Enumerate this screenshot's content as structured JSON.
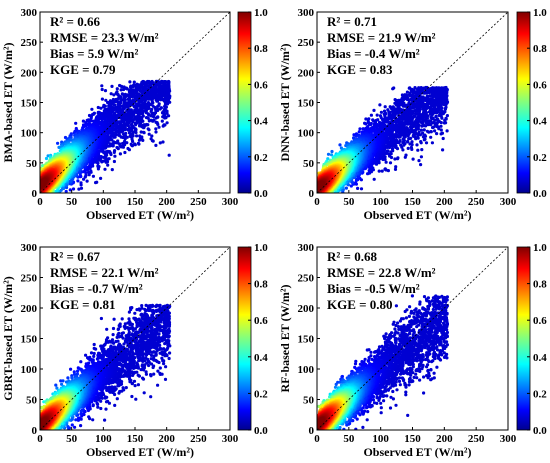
{
  "chart_data": [
    {
      "type": "scatter",
      "variant": "density-scatter",
      "xlabel": "Observed ET (W/m²)",
      "ylabel": "BMA-based ET (W/m²)",
      "xlim": [
        0,
        300
      ],
      "ylim": [
        0,
        300
      ],
      "x_ticks": [
        "0",
        "50",
        "100",
        "150",
        "200",
        "250",
        "300"
      ],
      "y_ticks": [
        "0",
        "50",
        "100",
        "150",
        "200",
        "250",
        "300"
      ],
      "reference_line": "1:1",
      "stats": {
        "r2": "R² = 0.66",
        "rmse": "RMSE = 23.3 W/m²",
        "bias": "Bias = 5.9 W/m²",
        "kge": "KGE = 0.79"
      },
      "colorbar": {
        "ticks": [
          "0.0",
          "0.2",
          "0.4",
          "0.6",
          "0.8",
          "1.0"
        ],
        "range": [
          0,
          1
        ],
        "colormap": "jet"
      },
      "cloud": {
        "x_max": 205,
        "slope": 0.88,
        "intercept": 12,
        "spread": 22,
        "y_cap": 185
      }
    },
    {
      "type": "scatter",
      "variant": "density-scatter",
      "xlabel": "Observed ET (W/m²)",
      "ylabel": "DNN-based ET (W/m²)",
      "xlim": [
        0,
        300
      ],
      "ylim": [
        0,
        300
      ],
      "x_ticks": [
        "0",
        "50",
        "100",
        "150",
        "200",
        "250",
        "300"
      ],
      "y_ticks": [
        "0",
        "50",
        "100",
        "150",
        "200",
        "250",
        "300"
      ],
      "reference_line": "1:1",
      "stats": {
        "r2": "R² = 0.71",
        "rmse": "RMSE =  21.9 W/m²",
        "bias": "Bias = -0.4 W/m²",
        "kge": "KGE = 0.83"
      },
      "colorbar": {
        "ticks": [
          "0.0",
          "0.2",
          "0.4",
          "0.6",
          "0.8",
          "1.0"
        ],
        "range": [
          0,
          1
        ],
        "colormap": "jet"
      },
      "cloud": {
        "x_max": 205,
        "slope": 0.82,
        "intercept": 8,
        "spread": 20,
        "y_cap": 175
      }
    },
    {
      "type": "scatter",
      "variant": "density-scatter",
      "xlabel": "Observed ET (W/m²)",
      "ylabel": "GBRT-based ET (W/m²)",
      "xlim": [
        0,
        300
      ],
      "ylim": [
        0,
        300
      ],
      "x_ticks": [
        "0",
        "50",
        "100",
        "150",
        "200",
        "250",
        "300"
      ],
      "y_ticks": [
        "0",
        "50",
        "100",
        "150",
        "200",
        "250",
        "300"
      ],
      "reference_line": "1:1",
      "stats": {
        "r2": "R² = 0.67",
        "rmse": "RMSE = 22.1 W/m²",
        "bias": "Bias = -0.7 W/m²",
        "kge": "KGE = 0.81"
      },
      "colorbar": {
        "ticks": [
          "0.0",
          "0.2",
          "0.4",
          "0.6",
          "0.8",
          "1.0"
        ],
        "range": [
          0,
          1
        ],
        "colormap": "jet"
      },
      "cloud": {
        "x_max": 205,
        "slope": 0.85,
        "intercept": 8,
        "spread": 21,
        "y_cap": 205
      }
    },
    {
      "type": "scatter",
      "variant": "density-scatter",
      "xlabel": "Observed ET (W/m²)",
      "ylabel": "RF-based ET (W/m²)",
      "xlim": [
        0,
        300
      ],
      "ylim": [
        0,
        300
      ],
      "x_ticks": [
        "0",
        "50",
        "100",
        "150",
        "200",
        "250",
        "300"
      ],
      "y_ticks": [
        "0",
        "50",
        "100",
        "150",
        "200",
        "250",
        "300"
      ],
      "reference_line": "1:1",
      "stats": {
        "r2": "R² = 0.68",
        "rmse": "RMSE = 22.8 W/m²",
        "bias": "Bias = -0.5 W/m²",
        "kge": "KGE = 0.80"
      },
      "colorbar": {
        "ticks": [
          "0.0",
          "0.2",
          "0.4",
          "0.6",
          "0.8",
          "1.0"
        ],
        "range": [
          0,
          1
        ],
        "colormap": "jet"
      },
      "cloud": {
        "x_max": 205,
        "slope": 0.86,
        "intercept": 8,
        "spread": 21,
        "y_cap": 220
      }
    }
  ]
}
